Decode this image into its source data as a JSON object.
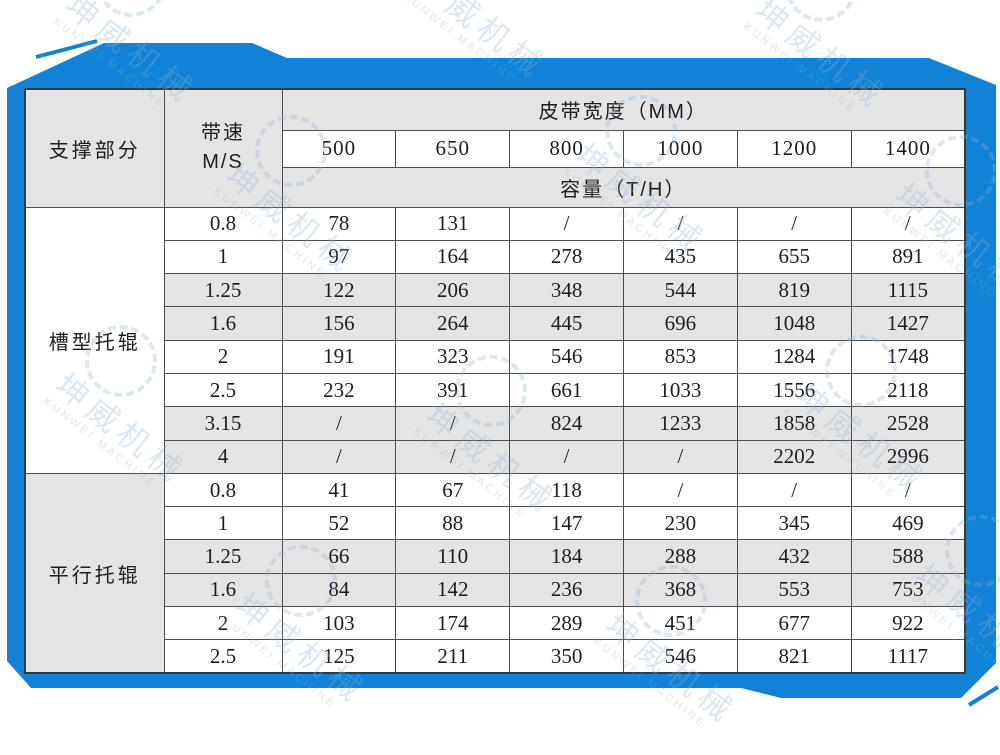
{
  "colors": {
    "frame_blue": "#1182d5",
    "cell_gray": "#e4e4e4",
    "grid_line": "#4d4d4d",
    "table_edge": "#383838",
    "ink": "#1d1d1d",
    "watermark": "#8fb3d6"
  },
  "watermark": {
    "cn": "坤威机械",
    "en": "KUNWEI MACHINE"
  },
  "table": {
    "corner_header": "支撑部分",
    "speed_header_line1": "带速",
    "speed_header_line2": "M/S",
    "width_header": "皮带宽度（MM）",
    "capacity_header": "容量（T/H）",
    "belt_widths": [
      "500",
      "650",
      "800",
      "1000",
      "1200",
      "1400"
    ],
    "sections": [
      {
        "label": "槽型托辊",
        "rows": [
          {
            "speed": "0.8",
            "values": [
              "78",
              "131",
              "/",
              "/",
              "/",
              "/"
            ]
          },
          {
            "speed": "1",
            "values": [
              "97",
              "164",
              "278",
              "435",
              "655",
              "891"
            ]
          },
          {
            "speed": "1.25",
            "values": [
              "122",
              "206",
              "348",
              "544",
              "819",
              "1115"
            ]
          },
          {
            "speed": "1.6",
            "values": [
              "156",
              "264",
              "445",
              "696",
              "1048",
              "1427"
            ]
          },
          {
            "speed": "2",
            "values": [
              "191",
              "323",
              "546",
              "853",
              "1284",
              "1748"
            ]
          },
          {
            "speed": "2.5",
            "values": [
              "232",
              "391",
              "661",
              "1033",
              "1556",
              "2118"
            ]
          },
          {
            "speed": "3.15",
            "values": [
              "/",
              "/",
              "824",
              "1233",
              "1858",
              "2528"
            ]
          },
          {
            "speed": "4",
            "values": [
              "/",
              "/",
              "/",
              "/",
              "2202",
              "2996"
            ]
          }
        ]
      },
      {
        "label": "平行托辊",
        "rows": [
          {
            "speed": "0.8",
            "values": [
              "41",
              "67",
              "118",
              "/",
              "/",
              "/"
            ]
          },
          {
            "speed": "1",
            "values": [
              "52",
              "88",
              "147",
              "230",
              "345",
              "469"
            ]
          },
          {
            "speed": "1.25",
            "values": [
              "66",
              "110",
              "184",
              "288",
              "432",
              "588"
            ]
          },
          {
            "speed": "1.6",
            "values": [
              "84",
              "142",
              "236",
              "368",
              "553",
              "753"
            ]
          },
          {
            "speed": "2",
            "values": [
              "103",
              "174",
              "289",
              "451",
              "677",
              "922"
            ]
          },
          {
            "speed": "2.5",
            "values": [
              "125",
              "211",
              "350",
              "546",
              "821",
              "1117"
            ]
          }
        ]
      }
    ]
  },
  "chart_data": {
    "type": "table",
    "title": "皮带宽度（MM）／容量（T/H）",
    "columns": [
      "支撑部分",
      "带速 M/S",
      "500",
      "650",
      "800",
      "1000",
      "1200",
      "1400"
    ],
    "rows": [
      [
        "槽型托辊",
        "0.8",
        "78",
        "131",
        "/",
        "/",
        "/",
        "/"
      ],
      [
        "槽型托辊",
        "1",
        "97",
        "164",
        "278",
        "435",
        "655",
        "891"
      ],
      [
        "槽型托辊",
        "1.25",
        "122",
        "206",
        "348",
        "544",
        "819",
        "1115"
      ],
      [
        "槽型托辊",
        "1.6",
        "156",
        "264",
        "445",
        "696",
        "1048",
        "1427"
      ],
      [
        "槽型托辊",
        "2",
        "191",
        "323",
        "546",
        "853",
        "1284",
        "1748"
      ],
      [
        "槽型托辊",
        "2.5",
        "232",
        "391",
        "661",
        "1033",
        "1556",
        "2118"
      ],
      [
        "槽型托辊",
        "3.15",
        "/",
        "/",
        "824",
        "1233",
        "1858",
        "2528"
      ],
      [
        "槽型托辊",
        "4",
        "/",
        "/",
        "/",
        "/",
        "2202",
        "2996"
      ],
      [
        "平行托辊",
        "0.8",
        "41",
        "67",
        "118",
        "/",
        "/",
        "/"
      ],
      [
        "平行托辊",
        "1",
        "52",
        "88",
        "147",
        "230",
        "345",
        "469"
      ],
      [
        "平行托辊",
        "1.25",
        "66",
        "110",
        "184",
        "288",
        "432",
        "588"
      ],
      [
        "平行托辊",
        "1.6",
        "84",
        "142",
        "236",
        "368",
        "553",
        "753"
      ],
      [
        "平行托辊",
        "2",
        "103",
        "174",
        "289",
        "451",
        "677",
        "922"
      ],
      [
        "平行托辊",
        "2.5",
        "125",
        "211",
        "350",
        "546",
        "821",
        "1117"
      ]
    ]
  }
}
